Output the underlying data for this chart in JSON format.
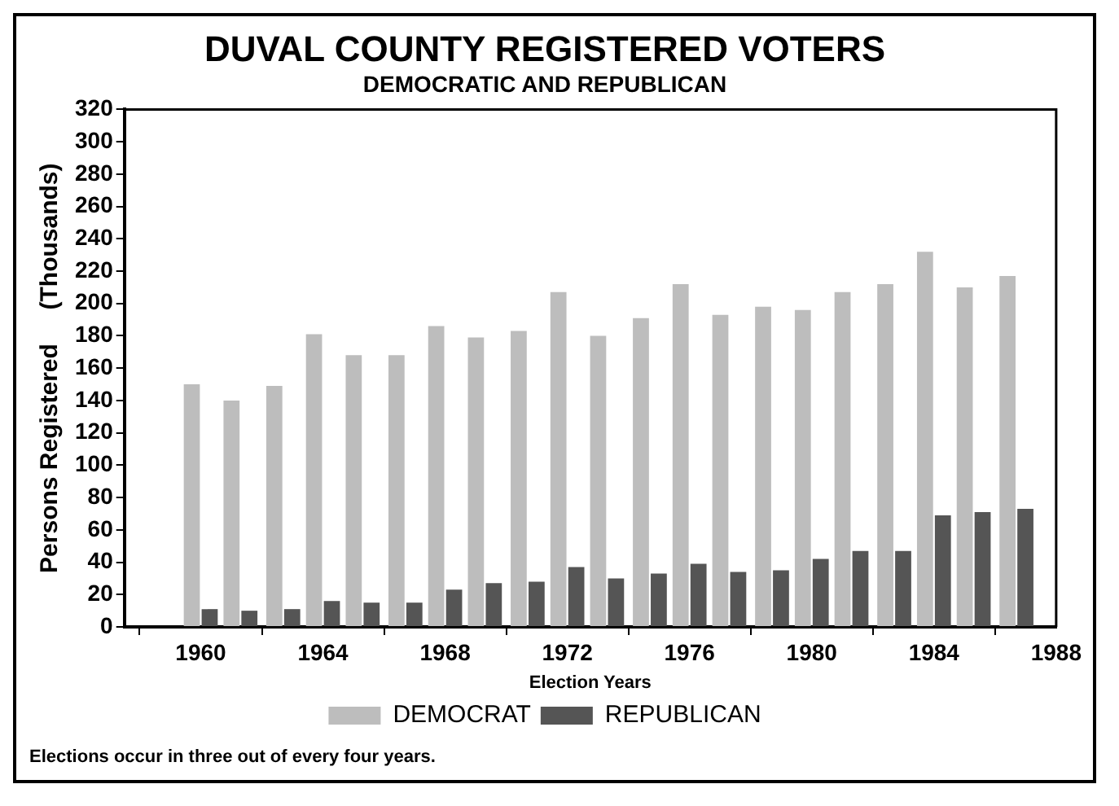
{
  "chart_data": {
    "type": "bar",
    "title": "DUVAL COUNTY REGISTERED VOTERS",
    "subtitle": "DEMOCRATIC AND REPUBLICAN",
    "xlabel": "Election Years",
    "ylabel": "Persons Registered     (Thousands)",
    "x": [
      1960,
      1961.3,
      1962.7,
      1964,
      1965.3,
      1966.7,
      1968,
      1969.3,
      1970.7,
      1972,
      1973.3,
      1974.7,
      1976,
      1977.3,
      1978.7,
      1980,
      1981.3,
      1982.7,
      1984,
      1985.3,
      1986.7
    ],
    "series": [
      {
        "name": "DEMOCRAT",
        "color": "#bdbdbd",
        "values": [
          150,
          140,
          149,
          181,
          168,
          168,
          186,
          179,
          183,
          207,
          180,
          191,
          212,
          193,
          198,
          196,
          207,
          212,
          232,
          210,
          217
        ]
      },
      {
        "name": "REPUBLICAN",
        "color": "#555555",
        "values": [
          11,
          10,
          11,
          16,
          15,
          15,
          23,
          27,
          28,
          37,
          30,
          33,
          39,
          34,
          35,
          42,
          47,
          47,
          69,
          71,
          73
        ]
      }
    ],
    "xlim": [
      1957.5,
      1988
    ],
    "xticks": [
      1960,
      1964,
      1968,
      1972,
      1976,
      1980,
      1984,
      1988
    ],
    "ylim": [
      0,
      320
    ],
    "yticks": [
      0,
      20,
      40,
      60,
      80,
      100,
      120,
      140,
      160,
      180,
      200,
      220,
      240,
      260,
      280,
      300,
      320
    ],
    "grid": false,
    "legend": "bottom",
    "annotations": [
      "Elections occur in three out of every four years."
    ]
  }
}
